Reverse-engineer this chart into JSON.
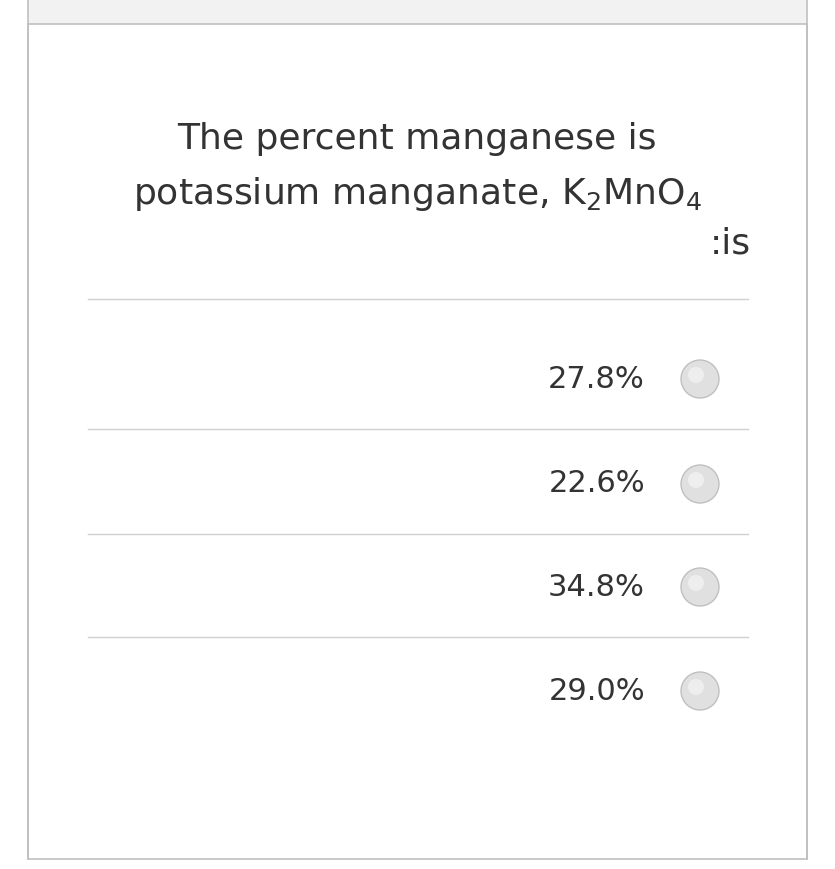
{
  "title_line1": "The percent manganese is",
  "title_line2": "potassium manganate, K$_2$MnO$_4$",
  "title_line3": ":is",
  "options": [
    "27.8%",
    "22.6%",
    "34.8%",
    "29.0%"
  ],
  "bg_color": "#ffffff",
  "border_color": "#c0c0c0",
  "header_bg": "#f2f2f2",
  "text_color": "#333333",
  "line_color": "#d0d0d0",
  "circle_face": "#e0e0e0",
  "circle_edge": "#c0c0c0",
  "title_fontsize": 26,
  "option_fontsize": 22,
  "fig_width": 8.35,
  "fig_height": 8.69
}
